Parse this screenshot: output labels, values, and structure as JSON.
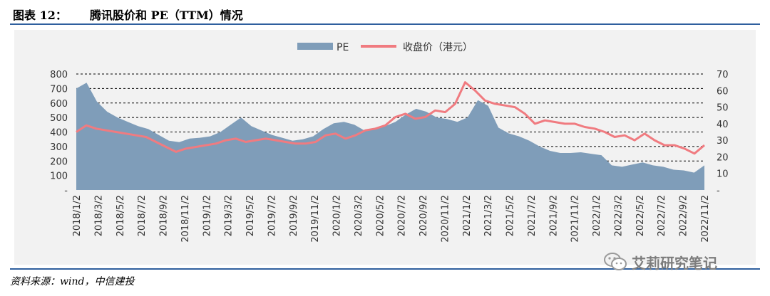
{
  "header": {
    "figure_label": "图表 12：",
    "title": "腾讯股价和 PE（TTM）情况"
  },
  "source": "资料来源：wind，中信建投",
  "watermark": {
    "text": "艾莉研究笔记",
    "icon": "wechat-icon"
  },
  "colors": {
    "pe_fill": "#7f9db9",
    "price_line": "#f07b80",
    "rule": "#2f5f9e",
    "panel": "#f2f2f2"
  },
  "chart_data": {
    "type": "area+line",
    "title": "腾讯股价和 PE（TTM）情况",
    "legend": [
      "PE",
      "收盘价（港元）"
    ],
    "legend_position": "top-center",
    "x_labels": [
      "2018/1/2",
      "2018/3/2",
      "2018/5/2",
      "2018/7/2",
      "2018/9/2",
      "2018/11/2",
      "2019/1/2",
      "2019/3/2",
      "2019/5/2",
      "2019/7/2",
      "2019/9/2",
      "2019/11/2",
      "2020/1/2",
      "2020/3/2",
      "2020/5/2",
      "2020/7/2",
      "2020/9/2",
      "2020/11/2",
      "2021/1/2",
      "2021/3/2",
      "2021/5/2",
      "2021/7/2",
      "2021/9/2",
      "2021/11/2",
      "2022/1/2",
      "2022/3/2",
      "2022/5/2",
      "2022/7/2",
      "2022/9/2",
      "2022/11/2"
    ],
    "y_left": {
      "label": "PE",
      "ticks": [
        "800",
        "700",
        "600",
        "500",
        "400",
        "300",
        "200",
        "100",
        "-"
      ],
      "range": [
        0,
        800
      ]
    },
    "y_right": {
      "label": "收盘价（港元）",
      "ticks": [
        "70",
        "60",
        "50",
        "40",
        "30",
        "20",
        "10",
        "-"
      ],
      "range": [
        0,
        70
      ]
    },
    "dashed_gridlines": true,
    "series": [
      {
        "name": "PE",
        "type": "area",
        "axis": "left",
        "color": "#7f9db9",
        "values": [
          700,
          740,
          610,
          540,
          500,
          470,
          440,
          420,
          380,
          340,
          330,
          355,
          360,
          370,
          400,
          450,
          500,
          440,
          410,
          380,
          360,
          340,
          350,
          370,
          420,
          460,
          470,
          450,
          410,
          420,
          440,
          470,
          520,
          560,
          540,
          500,
          490,
          470,
          500,
          620,
          580,
          430,
          390,
          370,
          340,
          300,
          270,
          255,
          255,
          260,
          250,
          240,
          170,
          160,
          175,
          190,
          170,
          160,
          140,
          135,
          120,
          170
        ]
      },
      {
        "name": "收盘价（港元）",
        "type": "line",
        "axis": "right",
        "color": "#f07b80",
        "values": [
          35,
          39,
          37,
          36,
          35,
          34,
          33,
          32,
          29,
          26,
          23,
          25,
          26,
          27,
          28,
          30,
          31,
          29,
          30,
          31,
          30,
          29,
          28,
          28,
          29,
          33,
          34,
          31,
          33,
          36,
          37,
          39,
          44,
          46,
          43,
          44,
          48,
          47,
          52,
          65,
          60,
          54,
          52,
          51,
          50,
          46,
          40,
          42,
          41,
          40,
          40,
          38,
          37,
          35,
          32,
          33,
          30,
          34,
          30,
          27,
          27,
          25,
          22,
          27
        ]
      }
    ]
  }
}
